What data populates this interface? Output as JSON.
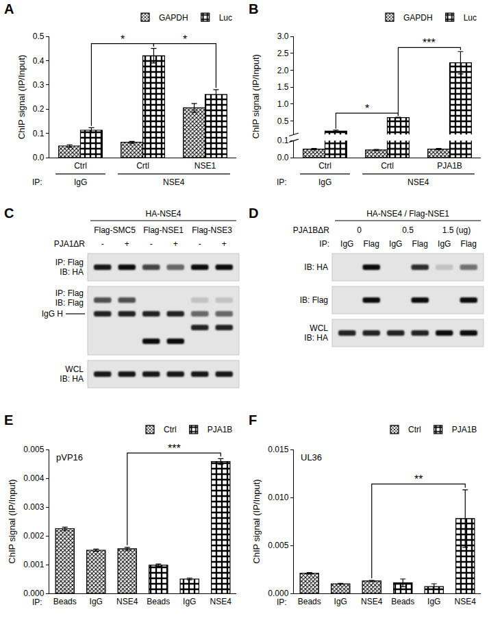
{
  "chart_data": [
    {
      "panel": "A",
      "type": "bar",
      "y_label": "ChIP signal (IP/Input)",
      "categories": [
        "Ctrl",
        "Crtl",
        "NSE1"
      ],
      "group_labels": [
        "IgG",
        "NSE4",
        "NSE4"
      ],
      "group_title": "IP:",
      "series": [
        {
          "name": "GAPDH",
          "color": "#ffffff",
          "values": [
            0.048,
            0.063,
            0.205
          ],
          "errors": [
            0.005,
            0.004,
            0.018
          ]
        },
        {
          "name": "Luc",
          "color": "#ffffff",
          "values": [
            0.113,
            0.42,
            0.26
          ],
          "errors": [
            0.01,
            0.03,
            0.02
          ]
        }
      ],
      "ylim": [
        0,
        0.5
      ],
      "yticks": [
        {
          "value": 0,
          "label": "0.0"
        },
        0.1,
        0.2,
        0.3,
        0.4,
        0.5
      ],
      "legend": "upper right",
      "significance": [
        {
          "text": "*",
          "from": 0,
          "to": 1,
          "series": "Luc"
        },
        {
          "text": "*",
          "from": 1,
          "to": 2,
          "series": "Luc"
        }
      ]
    },
    {
      "panel": "B",
      "type": "bar",
      "y_label": "ChIP signal (IP/Input)",
      "categories": [
        "Ctrl",
        "Crtl",
        "PJA1B"
      ],
      "group_labels": [
        "IgG",
        "NSE4",
        "NSE4"
      ],
      "group_title": "IP:",
      "series": [
        {
          "name": "GAPDH",
          "color": "#ffffff",
          "values": [
            0.05,
            0.045,
            0.05
          ],
          "errors": [
            0.004,
            0.003,
            0.004
          ]
        },
        {
          "name": "Luc",
          "color": "#ffffff",
          "values": [
            0.2,
            0.6,
            2.22
          ],
          "errors": [
            0.03,
            0.01,
            0.33
          ]
        }
      ],
      "ylim": [
        0,
        3.0
      ],
      "ybreak": 0.1,
      "yticks": [
        {
          "value": 0,
          "label": "0.0"
        },
        0.1,
        0.5,
        {
          "value": 1,
          "label": "1.0"
        },
        1.5,
        {
          "value": 2,
          "label": "2.0"
        },
        2.5,
        {
          "value": 3,
          "label": "3.0"
        }
      ],
      "legend": "upper right",
      "significance": [
        {
          "text": "*",
          "from": 0,
          "to": 1,
          "series": "Luc"
        },
        {
          "text": "***",
          "from": 1,
          "to": 2,
          "series": "Luc"
        }
      ]
    },
    {
      "panel": "E",
      "type": "bar",
      "title": "pVP16",
      "y_label": "ChIP signal (IP/Input)",
      "categories": [
        "Beads",
        "IgG",
        "NSE4",
        "Beads",
        "IgG",
        "NSE4"
      ],
      "group_title": "IP:",
      "series": [
        {
          "name": "Ctrl",
          "color": "#ffffff",
          "values": [
            0.00225,
            0.0015,
            0.00155,
            null,
            null,
            null
          ],
          "errors": [
            5e-05,
            4e-05,
            5e-05,
            null,
            null,
            null
          ]
        },
        {
          "name": "PJA1B",
          "color": "#ffffff",
          "values": [
            null,
            null,
            null,
            0.00098,
            0.0005,
            0.00458
          ],
          "errors": [
            null,
            null,
            null,
            4e-05,
            3e-05,
            0.0001
          ]
        }
      ],
      "ylim": [
        0,
        0.005
      ],
      "yticks": [
        {
          "value": 0,
          "label": "0.000"
        },
        0.001,
        0.002,
        0.003,
        0.004,
        0.005
      ],
      "legend": "upper right",
      "significance": [
        {
          "text": "***",
          "from": 2,
          "to": 5
        }
      ]
    },
    {
      "panel": "F",
      "type": "bar",
      "title": "UL36",
      "y_label": "ChIP signal (IP/Input)",
      "categories": [
        "Beads",
        "IgG",
        "NSE4",
        "Beads",
        "IgG",
        "NSE4"
      ],
      "group_title": "IP:",
      "series": [
        {
          "name": "Ctrl",
          "color": "#ffffff",
          "values": [
            0.0021,
            0.001,
            0.0013,
            null,
            null,
            null
          ],
          "errors": [
            8e-05,
            4e-05,
            5e-05,
            null,
            null,
            null
          ]
        },
        {
          "name": "PJA1B",
          "color": "#ffffff",
          "values": [
            null,
            null,
            null,
            0.0011,
            0.0007,
            0.0078
          ],
          "errors": [
            null,
            null,
            null,
            0.0004,
            0.0003,
            0.003
          ]
        }
      ],
      "ylim": [
        0,
        0.015
      ],
      "yticks": [
        {
          "value": 0,
          "label": "0.000"
        },
        0.005,
        {
          "value": 0.01,
          "label": "0.010"
        },
        0.015
      ],
      "legend": "upper right",
      "significance": [
        {
          "text": "**",
          "from": 2,
          "to": 5
        }
      ]
    }
  ],
  "blots": [
    {
      "panel": "C",
      "header": "HA-NSE4",
      "columns": [
        "Flag-SMC5",
        "Flag-NSE1",
        "Flag-NSE3"
      ],
      "lane_row_label": "PJA1ΔR",
      "lane_labels": [
        "-",
        "+",
        "-",
        "+",
        "-",
        "+"
      ],
      "strips": [
        {
          "labels": [
            "IP: Flag",
            "IB: HA"
          ],
          "bands": [
            {
              "values": [
                0.95,
                1,
                0.75,
                0.6,
                1,
                1
              ]
            }
          ]
        },
        {
          "labels": [
            "IP: Flag",
            "IB: Flag"
          ],
          "bands": [
            {
              "values": [
                0.7,
                0.7,
                0,
                0,
                0.15,
                0.15
              ]
            },
            {
              "label": "IgG H",
              "values": [
                0.9,
                0.9,
                0.9,
                0.9,
                0.6,
                0.6
              ]
            },
            {
              "values": [
                0,
                0,
                0,
                0,
                0.9,
                0.9
              ]
            },
            {
              "values": [
                0,
                0,
                1,
                1,
                0,
                0
              ]
            }
          ]
        },
        {
          "labels": [
            "WCL",
            "IB: HA"
          ],
          "bands": [
            {
              "values": [
                0.95,
                0.95,
                0.95,
                0.95,
                0.95,
                0.95
              ]
            }
          ]
        }
      ]
    },
    {
      "panel": "D",
      "header": "HA-NSE4 / Flag-NSE1",
      "column_label": "PJA1BΔR",
      "columns": [
        0,
        0.5,
        1.5
      ],
      "column_unit": "(ug)",
      "lane_row_label": "IP:",
      "lane_labels": [
        "IgG",
        "Flag",
        "IgG",
        "Flag",
        "IgG",
        "Flag"
      ],
      "strips": [
        {
          "labels": [
            "IB: HA"
          ],
          "bands": [
            {
              "values": [
                0,
                1,
                0,
                0.85,
                0.15,
                0.55
              ]
            }
          ]
        },
        {
          "labels": [
            "IB: Flag"
          ],
          "bands": [
            {
              "values": [
                0,
                1,
                0,
                1,
                0,
                1
              ]
            }
          ]
        },
        {
          "labels": [
            "WCL",
            "IB: HA"
          ],
          "bands": [
            {
              "values": [
                0.9,
                0.9,
                0.9,
                0.9,
                1,
                1
              ]
            }
          ]
        }
      ]
    }
  ]
}
